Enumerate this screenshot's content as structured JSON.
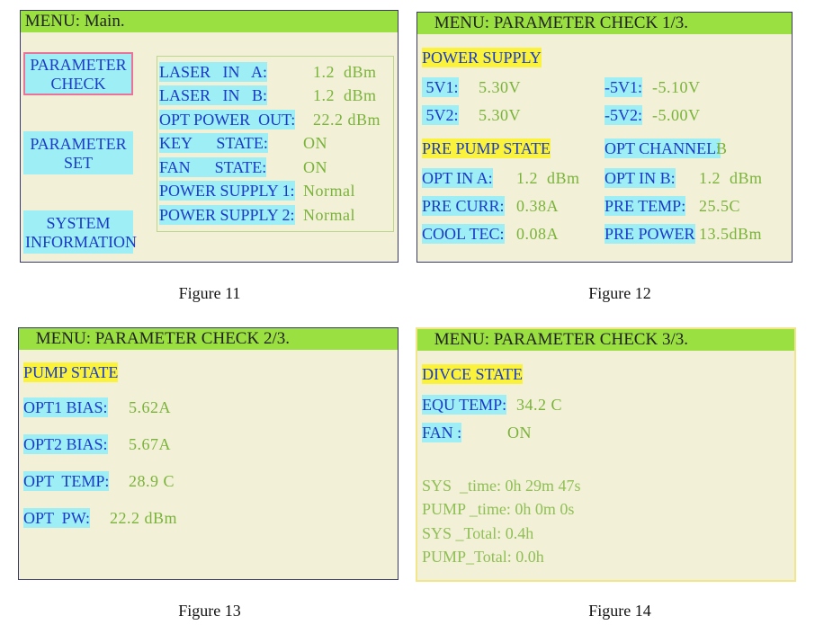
{
  "fig11": {
    "title": " MENU: Main.",
    "buttons": [
      {
        "label": "PARAMETER\nCHECK"
      },
      {
        "label": "PARAMETER\nSET"
      },
      {
        "label": "SYSTEM\nINFORMATION"
      }
    ],
    "rows": [
      {
        "label": "LASER   IN   A:",
        "value": "1.2  dBm"
      },
      {
        "label": "LASER   IN   B:",
        "value": "1.2  dBm"
      },
      {
        "label": "OPT POWER  OUT:",
        "value": "22.2 dBm"
      },
      {
        "label": "KEY      STATE:",
        "value": "ON"
      },
      {
        "label": "FAN      STATE:",
        "value": "ON"
      },
      {
        "label": "POWER SUPPLY 1:",
        "value": "Normal"
      },
      {
        "label": "POWER SUPPLY 2:",
        "value": "Normal"
      }
    ],
    "caption": "Figure 11"
  },
  "fig12": {
    "title": " MENU: PARAMETER CHECK 1/3.",
    "power_supply_header": "POWER SUPPLY",
    "v5v1_label": " 5V1:",
    "v5v1_value": "5.30V",
    "v5v2_label": " 5V2:",
    "v5v2_value": "5.30V",
    "vn5v1_label": "-5V1:",
    "vn5v1_value": "-5.10V",
    "vn5v2_label": "-5V2:",
    "vn5v2_value": "-5.00V",
    "pre_pump_header": "PRE PUMP STATE",
    "opt_channel_label": "OPT CHANNEL:",
    "opt_channel_value": "B",
    "opt_in_a_label": "OPT IN A:",
    "opt_in_a_value": "1.2  dBm",
    "opt_in_b_label": "OPT IN B:",
    "opt_in_b_value": "1.2  dBm",
    "pre_curr_label": "PRE CURR:",
    "pre_curr_value": "0.38A",
    "pre_temp_label": "PRE TEMP:",
    "pre_temp_value": "25.5C",
    "cool_tec_label": "COOL TEC:",
    "cool_tec_value": "0.08A",
    "pre_power_label": "PRE POWER",
    "pre_power_value": "13.5dBm",
    "caption": "Figure 12"
  },
  "fig13": {
    "title": " MENU: PARAMETER CHECK 2/3.",
    "pump_header": "PUMP STATE",
    "rows": [
      {
        "label": "OPT1 BIAS:",
        "value": "5.62A"
      },
      {
        "label": "OPT2 BIAS:",
        "value": "5.67A"
      },
      {
        "label": "OPT  TEMP:",
        "value": "28.9 C"
      },
      {
        "label": "OPT  PW:",
        "value": "22.2 dBm"
      }
    ],
    "caption": "Figure 13"
  },
  "fig14": {
    "title": " MENU: PARAMETER CHECK 3/3.",
    "device_header": "DIVCE STATE",
    "equ_temp_label": "EQU TEMP:",
    "equ_temp_value": "34.2 C",
    "fan_label": "FAN :",
    "fan_value": "ON",
    "sys_time": "SYS  _time: 0h 29m 47s",
    "pump_time": "PUMP _time: 0h 0m 0s",
    "sys_total": "SYS _Total: 0.4h",
    "pump_total": "PUMP_Total: 0.0h",
    "caption": "Figure 14"
  }
}
